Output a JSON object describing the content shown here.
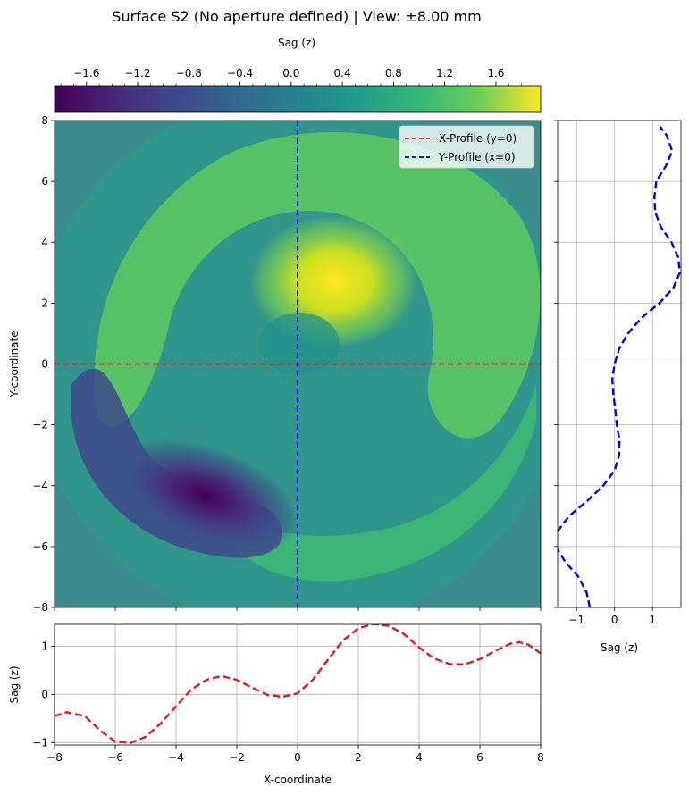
{
  "figure": {
    "title": "Surface S2 (No aperture defined) | View: ±8.00 mm"
  },
  "chart_data": [
    {
      "type": "heatmap",
      "name": "sag-map",
      "xlabel": "",
      "ylabel": "Y-coordinate",
      "xlim": [
        -8,
        8
      ],
      "ylim": [
        -8,
        8
      ],
      "xticks": [
        -8,
        -6,
        -4,
        -2,
        0,
        2,
        4,
        6,
        8
      ],
      "yticks": [
        -8,
        -6,
        -4,
        -2,
        0,
        2,
        4,
        6,
        8
      ],
      "x_tick_labels_visible": false,
      "colormap": "viridis",
      "colorbar": {
        "label": "Sag (z)",
        "range": [
          -1.85,
          1.95
        ],
        "ticks": [
          -1.6,
          -1.2,
          -0.8,
          -0.4,
          0.0,
          0.4,
          0.8,
          1.2,
          1.6
        ],
        "tick_labels": [
          "−1.6",
          "−1.2",
          "−0.8",
          "−0.4",
          "0.0",
          "0.4",
          "0.8",
          "1.2",
          "1.6"
        ],
        "placement": "top"
      },
      "features": [
        {
          "kind": "peak",
          "x": 1.3,
          "y": 2.7,
          "value": 1.9
        },
        {
          "kind": "trough",
          "x": -3.2,
          "y": -4.8,
          "value": -1.8
        }
      ],
      "overlay_lines": [
        {
          "name": "X-Profile (y=0)",
          "orientation": "horizontal",
          "at": 0,
          "color": "#e41a1c",
          "style": "dashed"
        },
        {
          "name": "Y-Profile (x=0)",
          "orientation": "vertical",
          "at": 0,
          "color": "#0000e6",
          "style": "dashed"
        }
      ],
      "legend": {
        "placement": "top-right",
        "entries": [
          "X-Profile (y=0)",
          "Y-Profile (x=0)"
        ]
      }
    },
    {
      "type": "line",
      "name": "x-profile",
      "xlabel": "X-coordinate",
      "ylabel": "Sag (z)",
      "xlim": [
        -8,
        8
      ],
      "ylim": [
        -1.05,
        1.45
      ],
      "xticks": [
        -8,
        -6,
        -4,
        -2,
        0,
        2,
        4,
        6,
        8
      ],
      "yticks": [
        -1,
        0,
        1
      ],
      "grid": true,
      "series": [
        {
          "color": "#e41a1c",
          "style": "dashed",
          "x": [
            -8,
            -7.6,
            -7,
            -6.5,
            -6,
            -5.5,
            -5,
            -4.5,
            -4,
            -3.5,
            -3,
            -2.5,
            -2,
            -1.5,
            -1,
            -0.5,
            0,
            0.5,
            1,
            1.5,
            2,
            2.5,
            3,
            3.5,
            4,
            4.5,
            5,
            5.5,
            6,
            6.5,
            7,
            7.3,
            7.6,
            8
          ],
          "y": [
            -0.45,
            -0.37,
            -0.45,
            -0.75,
            -0.98,
            -1.01,
            -0.88,
            -0.6,
            -0.25,
            0.1,
            0.3,
            0.38,
            0.3,
            0.14,
            -0.01,
            -0.05,
            0.02,
            0.3,
            0.72,
            1.12,
            1.37,
            1.46,
            1.42,
            1.25,
            0.97,
            0.74,
            0.63,
            0.62,
            0.73,
            0.9,
            1.05,
            1.08,
            1.03,
            0.85
          ]
        }
      ]
    },
    {
      "type": "line",
      "name": "y-profile",
      "xlabel": "Sag (z)",
      "ylabel": "",
      "xlim": [
        -1.5,
        1.75
      ],
      "ylim": [
        -8,
        8
      ],
      "xticks": [
        -1,
        0,
        1
      ],
      "xtick_labels": [
        "−1",
        "0",
        "1"
      ],
      "yticks": [
        -8,
        -6,
        -4,
        -2,
        0,
        2,
        4,
        6,
        8
      ],
      "y_tick_labels_visible": false,
      "grid": true,
      "series": [
        {
          "color": "#0000e6",
          "style": "dashed",
          "y": [
            -8,
            -7.5,
            -7,
            -6.5,
            -6,
            -5.5,
            -5,
            -4.5,
            -4,
            -3.5,
            -3,
            -2.5,
            -2,
            -1.5,
            -1,
            -0.5,
            0,
            0.5,
            1,
            1.5,
            2,
            2.5,
            3,
            3.5,
            4,
            4.5,
            5,
            5.5,
            6,
            6.5,
            7,
            7.5,
            7.8
          ],
          "x": [
            -0.65,
            -0.74,
            -0.95,
            -1.3,
            -1.55,
            -1.5,
            -1.2,
            -0.72,
            -0.3,
            0.0,
            0.12,
            0.13,
            0.06,
            0.02,
            -0.03,
            -0.06,
            0.0,
            0.12,
            0.35,
            0.7,
            1.18,
            1.55,
            1.72,
            1.68,
            1.5,
            1.22,
            1.07,
            1.05,
            1.1,
            1.35,
            1.52,
            1.38,
            1.2
          ]
        }
      ]
    }
  ]
}
